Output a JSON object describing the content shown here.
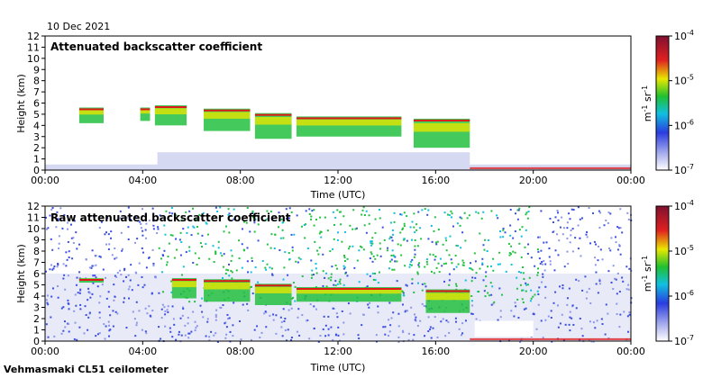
{
  "date_label": "10 Dec 2021",
  "footer_label": "Vehmasmaki CL51 ceilometer",
  "colors": {
    "bg_cloud": "#d6d9f2",
    "noise_blue": "#3a4fe0",
    "green": "#22c040",
    "yellow": "#e6e600",
    "red": "#e01818"
  },
  "chart_data": [
    {
      "type": "heatmap",
      "title": "Attenuated backscatter coefficient",
      "xlabel": "Time (UTC)",
      "ylabel": "Height (km)",
      "xlim": [
        0,
        24
      ],
      "ylim": [
        0,
        12
      ],
      "xticks": [
        "00:00",
        "04:00",
        "08:00",
        "12:00",
        "16:00",
        "20:00",
        "00:00"
      ],
      "yticks": [
        "0",
        "1",
        "2",
        "3",
        "4",
        "5",
        "6",
        "7",
        "8",
        "9",
        "10",
        "11",
        "12"
      ],
      "grid": false,
      "cloud_layers": [
        {
          "start": 1.4,
          "end": 2.4,
          "base": 4.2,
          "top": 5.6
        },
        {
          "start": 3.9,
          "end": 4.3,
          "base": 4.4,
          "top": 5.6
        },
        {
          "start": 4.5,
          "end": 5.8,
          "base": 4.0,
          "top": 5.8
        },
        {
          "start": 6.5,
          "end": 8.4,
          "base": 3.5,
          "top": 5.5
        },
        {
          "start": 8.6,
          "end": 10.1,
          "base": 2.8,
          "top": 5.1
        },
        {
          "start": 10.3,
          "end": 14.6,
          "base": 3.0,
          "top": 4.8
        },
        {
          "start": 15.1,
          "end": 17.4,
          "base": 2.0,
          "top": 4.6
        }
      ],
      "colorbar": {
        "label": "m-1 sr-1",
        "min_exp": -7,
        "max_exp": -4
      }
    },
    {
      "type": "heatmap",
      "title": "Raw attenuated backscatter coefficient",
      "xlabel": "Time (UTC)",
      "ylabel": "Height (km)",
      "xlim": [
        0,
        24
      ],
      "ylim": [
        0,
        12
      ],
      "xticks": [
        "00:00",
        "04:00",
        "08:00",
        "12:00",
        "16:00",
        "20:00",
        "00:00"
      ],
      "yticks": [
        "0",
        "1",
        "2",
        "3",
        "4",
        "5",
        "6",
        "7",
        "8",
        "9",
        "10",
        "11",
        "12"
      ],
      "grid": false,
      "noise_region": {
        "start": 4.6,
        "end": 20.2,
        "base": 7.0,
        "top": 12.0
      },
      "cloud_layers": [
        {
          "start": 1.4,
          "end": 2.4,
          "base": 5.2,
          "top": 5.6
        },
        {
          "start": 5.2,
          "end": 6.2,
          "base": 3.8,
          "top": 5.6
        },
        {
          "start": 6.5,
          "end": 8.4,
          "base": 3.5,
          "top": 5.5
        },
        {
          "start": 8.6,
          "end": 10.1,
          "base": 3.2,
          "top": 5.1
        },
        {
          "start": 10.3,
          "end": 14.6,
          "base": 3.5,
          "top": 4.8
        },
        {
          "start": 15.6,
          "end": 17.4,
          "base": 2.5,
          "top": 4.6
        }
      ],
      "colorbar": {
        "label": "m-1 sr-1",
        "min_exp": -7,
        "max_exp": -4
      }
    }
  ]
}
